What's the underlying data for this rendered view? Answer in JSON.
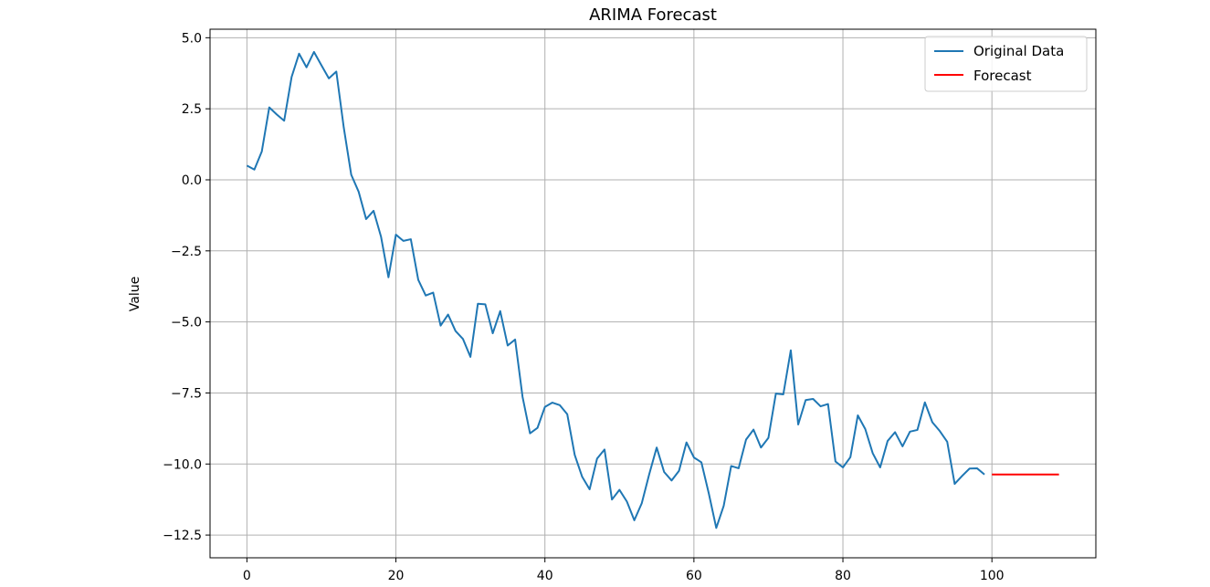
{
  "chart_data": {
    "type": "line",
    "title": "ARIMA Forecast",
    "xlabel": "",
    "ylabel": "Value",
    "xlim": [
      -4.95,
      113.95
    ],
    "ylim": [
      -13.3,
      5.3
    ],
    "x_ticks": [
      0,
      20,
      40,
      60,
      80,
      100
    ],
    "y_ticks": [
      5.0,
      2.5,
      0.0,
      -2.5,
      -5.0,
      -7.5,
      -10.0,
      -12.5
    ],
    "x_tick_labels": [
      "0",
      "20",
      "40",
      "60",
      "80",
      "100"
    ],
    "y_tick_labels": [
      "5.0",
      "2.5",
      "0.0",
      "−2.5",
      "−5.0",
      "−7.5",
      "−10.0",
      "−12.5"
    ],
    "grid": true,
    "legend": {
      "position": "top-right"
    },
    "series": [
      {
        "name": "Original Data",
        "color": "#1f77b4",
        "x_start": 0,
        "values": [
          0.5,
          0.36,
          1.0,
          2.55,
          2.3,
          2.08,
          3.62,
          4.44,
          3.96,
          4.5,
          4.03,
          3.57,
          3.81,
          1.84,
          0.18,
          -0.42,
          -1.38,
          -1.09,
          -2.0,
          -3.43,
          -1.93,
          -2.15,
          -2.09,
          -3.52,
          -4.07,
          -3.97,
          -5.13,
          -4.74,
          -5.32,
          -5.6,
          -6.23,
          -4.36,
          -4.38,
          -5.4,
          -4.62,
          -5.83,
          -5.62,
          -7.64,
          -8.92,
          -8.73,
          -7.99,
          -7.84,
          -7.93,
          -8.25,
          -9.68,
          -10.45,
          -10.89,
          -9.81,
          -9.49,
          -11.25,
          -10.91,
          -11.32,
          -11.98,
          -11.38,
          -10.36,
          -9.42,
          -10.28,
          -10.58,
          -10.24,
          -9.24,
          -9.77,
          -9.94,
          -11.04,
          -12.25,
          -11.47,
          -10.07,
          -10.15,
          -9.14,
          -8.79,
          -9.42,
          -9.08,
          -7.52,
          -7.55,
          -6.0,
          -8.61,
          -7.75,
          -7.71,
          -7.97,
          -7.89,
          -9.91,
          -10.12,
          -9.76,
          -8.29,
          -8.77,
          -9.62,
          -10.12,
          -9.19,
          -8.88,
          -9.38,
          -8.86,
          -8.8,
          -7.83,
          -8.53,
          -8.84,
          -9.22,
          -10.7,
          -10.42,
          -10.16,
          -10.15,
          -10.37
        ]
      },
      {
        "name": "Forecast",
        "color": "#ff0000",
        "x": [
          100,
          109
        ],
        "values": [
          -10.37,
          -10.37
        ]
      }
    ]
  }
}
